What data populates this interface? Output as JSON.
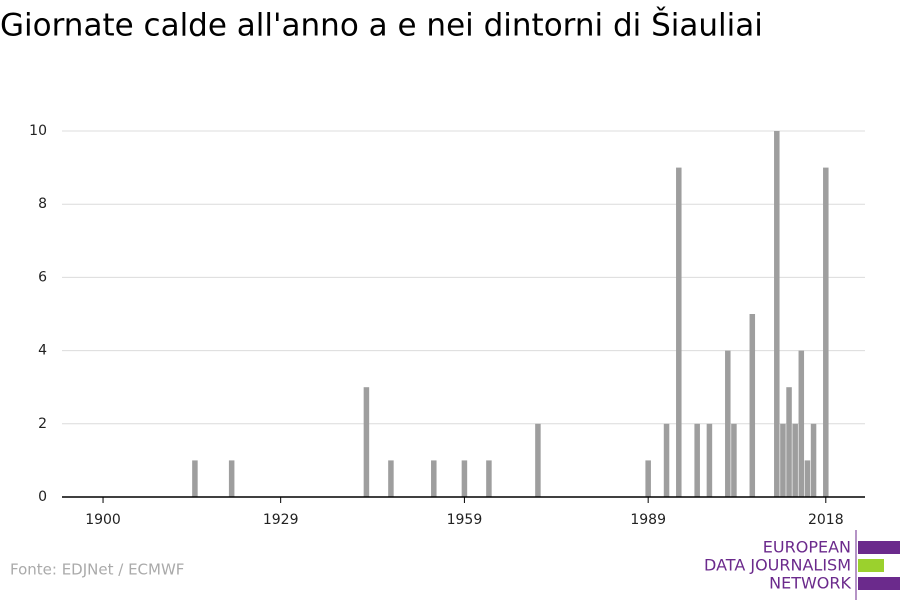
{
  "chart_data": {
    "type": "bar",
    "title": "Giornate calde all'anno a e nei dintorni di Šiauliai",
    "source": "Fonte: EDJNet / ECMWF",
    "x": [
      1915,
      1921,
      1943,
      1947,
      1954,
      1959,
      1963,
      1971,
      1989,
      1992,
      1994,
      1997,
      1999,
      2002,
      2003,
      2006,
      2010,
      2011,
      2012,
      2013,
      2014,
      2015,
      2016,
      2018
    ],
    "values": [
      1,
      1,
      3,
      1,
      1,
      1,
      1,
      2,
      1,
      2,
      9,
      2,
      2,
      4,
      2,
      5,
      10,
      2,
      3,
      2,
      4,
      1,
      2,
      9
    ],
    "color": "#9e9e9e",
    "xlim": [
      1893.3,
      2024.4
    ],
    "xticks": [
      1900,
      1929,
      1959,
      1989,
      2018
    ],
    "ylim": [
      0,
      10
    ],
    "yticks": [
      0,
      2,
      4,
      6,
      8,
      10
    ],
    "grid": true
  },
  "logo": {
    "lines": [
      "EUROPEAN",
      "DATA JOURNALISM",
      "NETWORK"
    ]
  }
}
